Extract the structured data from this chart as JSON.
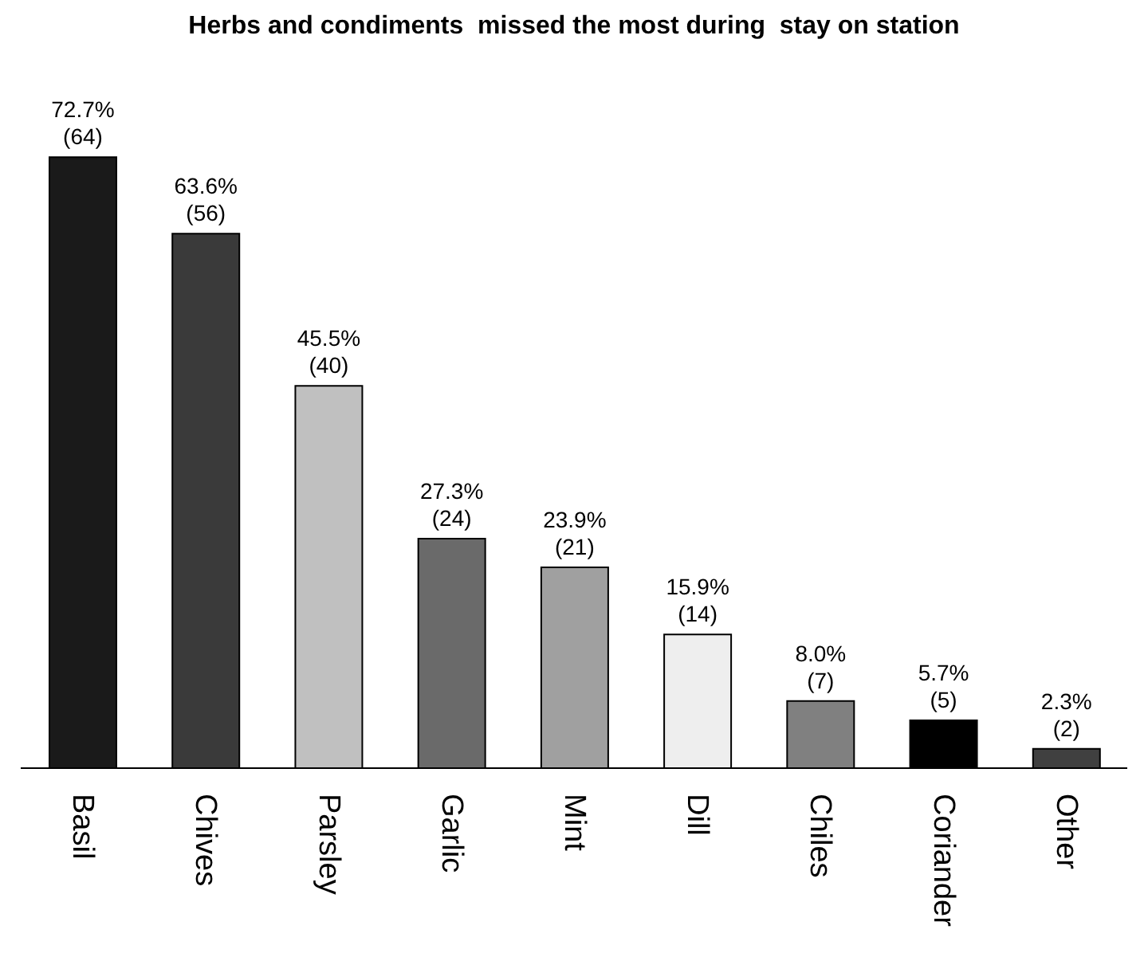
{
  "chart_data": {
    "type": "bar",
    "title": "Herbs and condiments  missed the most during  stay on station",
    "categories": [
      "Basil",
      "Chives",
      "Parsley",
      "Garlic",
      "Mint",
      "Dill",
      "Chiles",
      "Coriander",
      "Other"
    ],
    "values": [
      72.7,
      63.6,
      45.5,
      27.3,
      23.9,
      15.9,
      8.0,
      5.7,
      2.3
    ],
    "value_labels": [
      "72.7%\n(64)",
      "63.6%\n(56)",
      "45.5%\n(40)",
      "27.3%\n(24)",
      "23.9%\n(21)",
      "15.9%\n(14)",
      "8.0%\n(7)",
      "5.7%\n(5)",
      "2.3%\n(2)"
    ],
    "colors": [
      "#1a1a1a",
      "#3a3a3a",
      "#c0c0c0",
      "#6a6a6a",
      "#a0a0a0",
      "#eeeeee",
      "#808080",
      "#000000",
      "#404040"
    ],
    "grid": false,
    "legend": false
  }
}
